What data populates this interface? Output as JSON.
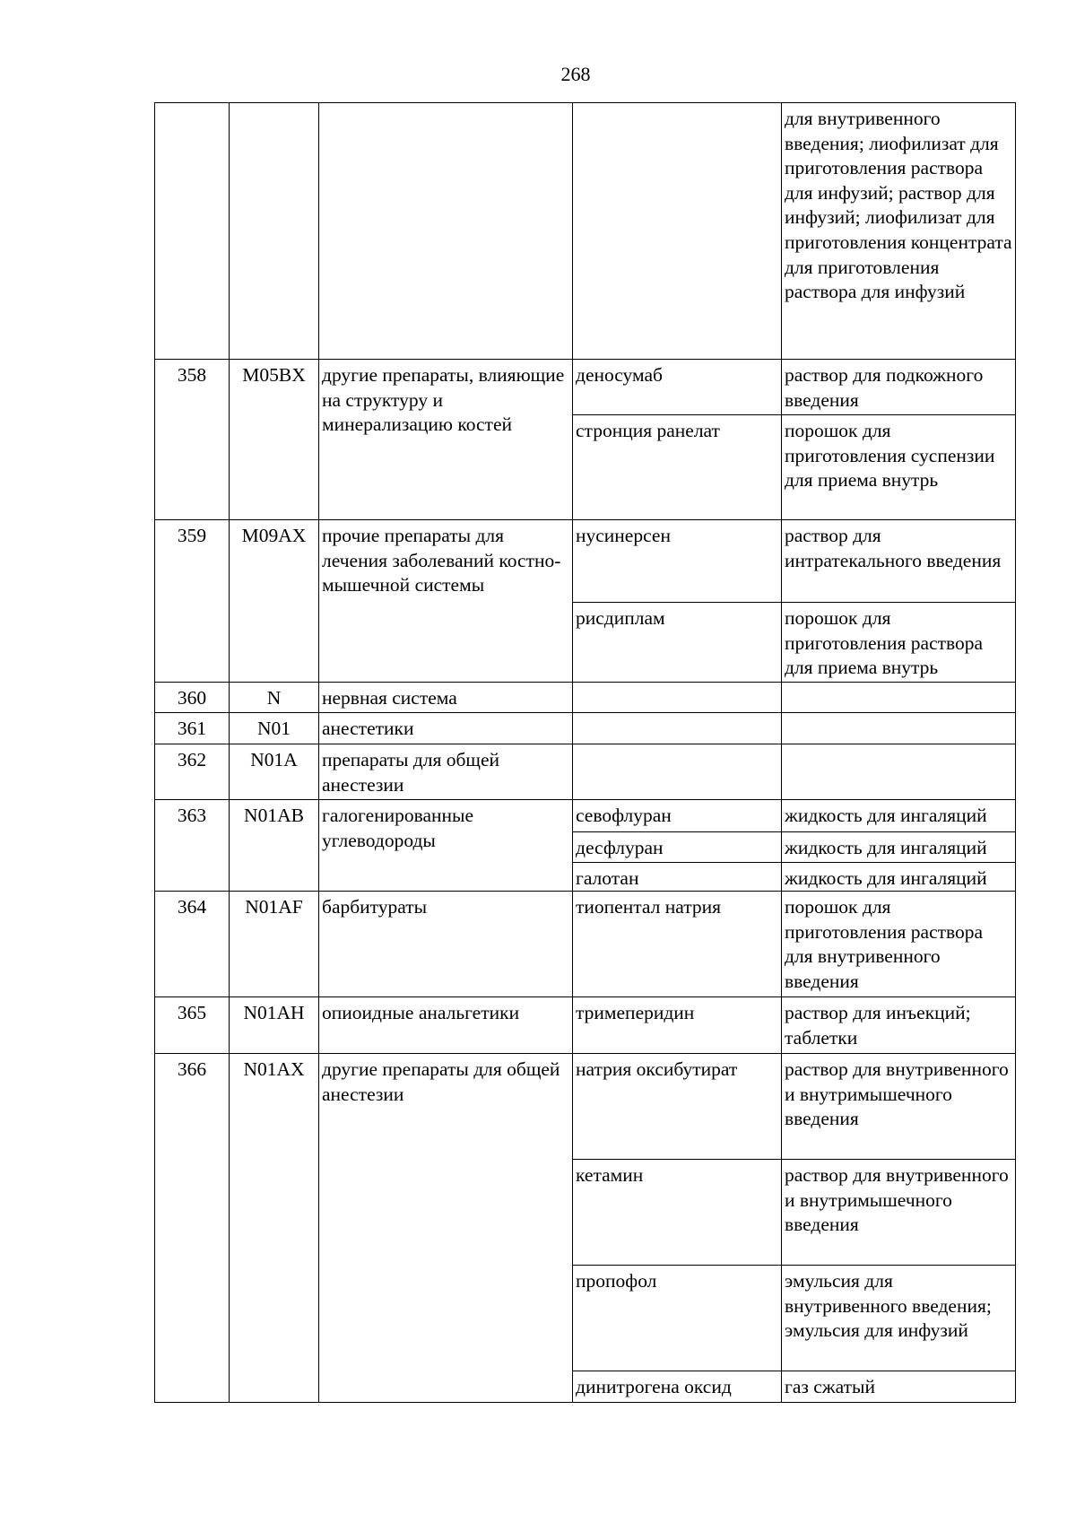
{
  "page_number": "268",
  "table": {
    "continuation": {
      "forms": "для внутривенного введения; лиофилизат для приготовления раствора для инфузий; раствор для инфузий; лиофилизат для приготовления концентрата для приготовления раствора для инфузий"
    },
    "rows": [
      {
        "num": "358",
        "code": "M05BX",
        "name": "другие препараты, влияющие на структуру и минерализацию костей",
        "drugs": [
          {
            "name": "деносумаб",
            "forms": "раствор для подкожного введения"
          },
          {
            "name": "стронция ранелат",
            "forms": "порошок для приготовления суспензии для приема внутрь"
          }
        ]
      },
      {
        "num": "359",
        "code": "M09AX",
        "name": "прочие препараты для лечения заболеваний костно-мышечной системы",
        "drugs": [
          {
            "name": "нусинерсен",
            "forms": "раствор для интратекального введения"
          },
          {
            "name": "рисдиплам",
            "forms": "порошок для приготовления раствора для приема внутрь"
          }
        ]
      },
      {
        "num": "360",
        "code": "N",
        "name": "нервная система",
        "drugs": [
          {
            "name": "",
            "forms": ""
          }
        ]
      },
      {
        "num": "361",
        "code": "N01",
        "name": "анестетики",
        "drugs": [
          {
            "name": "",
            "forms": ""
          }
        ]
      },
      {
        "num": "362",
        "code": "N01A",
        "name": "препараты для общей анестезии",
        "drugs": [
          {
            "name": "",
            "forms": ""
          }
        ]
      },
      {
        "num": "363",
        "code": "N01AB",
        "name": "галогенированные углеводороды",
        "drugs": [
          {
            "name": "севофлуран",
            "forms": "жидкость для ингаляций"
          },
          {
            "name": "десфлуран",
            "forms": "жидкость для ингаляций"
          },
          {
            "name": "галотан",
            "forms": "жидкость для ингаляций"
          }
        ]
      },
      {
        "num": "364",
        "code": "N01AF",
        "name": "барбитураты",
        "drugs": [
          {
            "name": "тиопентал натрия",
            "forms": "порошок для приготовления раствора для внутривенного введения"
          }
        ]
      },
      {
        "num": "365",
        "code": "N01AH",
        "name": "опиоидные анальгетики",
        "drugs": [
          {
            "name": "тримеперидин",
            "forms": "раствор для инъекций; таблетки"
          }
        ]
      },
      {
        "num": "366",
        "code": "N01AX",
        "name": "другие препараты для общей анестезии",
        "drugs": [
          {
            "name": "натрия оксибутират",
            "forms": "раствор для внутривенного и внутримышечного введения"
          },
          {
            "name": "кетамин",
            "forms": "раствор для внутривенного и внутримышечного введения"
          },
          {
            "name": "пропофол",
            "forms": "эмульсия для внутривенного введения; эмульсия для инфузий"
          },
          {
            "name": "динитрогена оксид",
            "forms": "газ сжатый"
          }
        ]
      }
    ]
  }
}
